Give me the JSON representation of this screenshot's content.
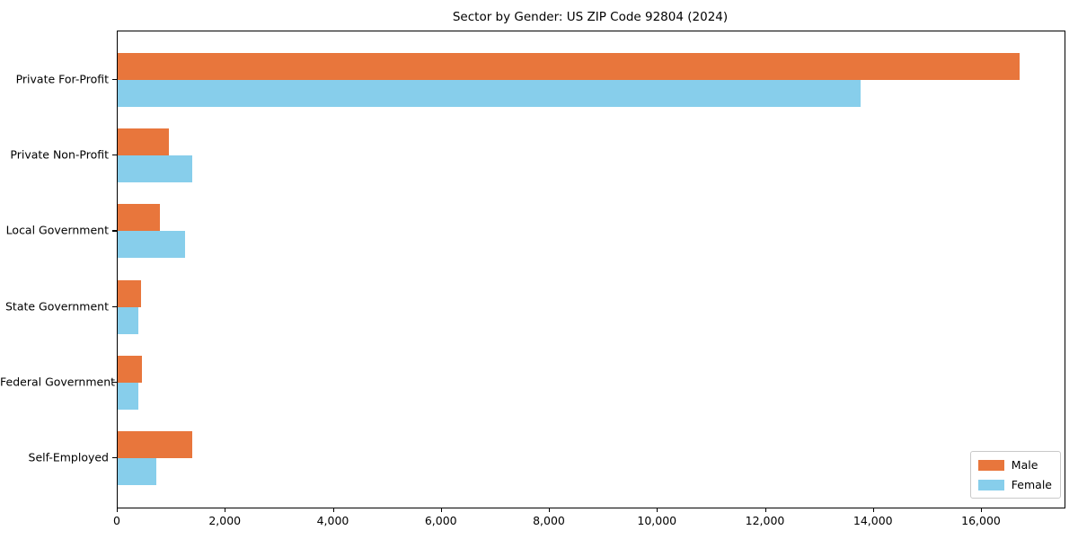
{
  "chart_data": {
    "type": "bar",
    "orientation": "horizontal",
    "title": "Sector by Gender: US ZIP Code 92804 (2024)",
    "categories": [
      "Private For-Profit",
      "Private Non-Profit",
      "Local Government",
      "State Government",
      "Federal Government",
      "Self-Employed"
    ],
    "series": [
      {
        "name": "Male",
        "color": "#E8763C",
        "values": [
          16700,
          940,
          780,
          430,
          440,
          1380
        ]
      },
      {
        "name": "Female",
        "color": "#87CEEB",
        "values": [
          13750,
          1380,
          1240,
          390,
          380,
          720
        ]
      }
    ],
    "xlabel": "",
    "ylabel": "",
    "xlim": [
      0,
      17530
    ],
    "xticks": [
      0,
      2000,
      4000,
      6000,
      8000,
      10000,
      12000,
      14000,
      16000
    ],
    "xtick_labels": [
      "0",
      "2,000",
      "4,000",
      "6,000",
      "8,000",
      "10,000",
      "12,000",
      "14,000",
      "16,000"
    ],
    "grid": false,
    "legend_position": "lower right"
  }
}
